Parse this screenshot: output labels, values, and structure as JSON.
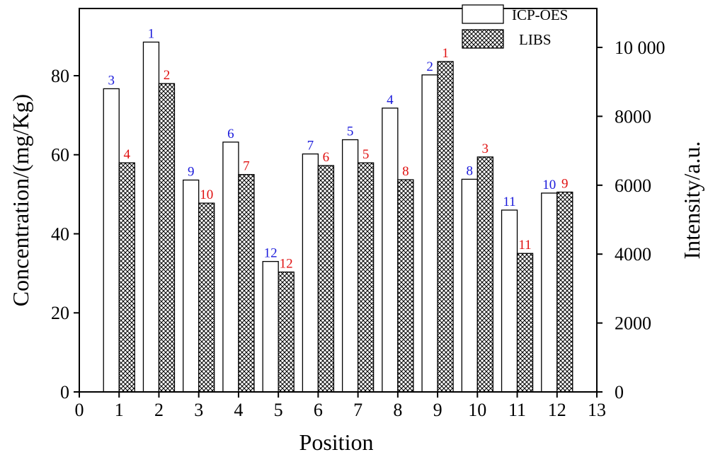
{
  "chart_data": {
    "type": "bar",
    "title": "",
    "xlabel": "Position",
    "ylabel_left": "Concentration/(mg/Kg)",
    "ylabel_right": "Intensity/a.u.",
    "x_ticks": [
      "0",
      "1",
      "2",
      "3",
      "4",
      "5",
      "6",
      "7",
      "8",
      "9",
      "10",
      "11",
      "12",
      "13"
    ],
    "y_left_ticks": [
      "0",
      "20",
      "40",
      "60",
      "80"
    ],
    "y_right_ticks": [
      "0",
      "2000",
      "4000",
      "6000",
      "8000",
      "10 000"
    ],
    "xlim": [
      0,
      13
    ],
    "ylim_left": [
      0,
      97
    ],
    "ylim_right": [
      0,
      11130
    ],
    "grid": false,
    "legend_position": "top-right",
    "categories": [
      1,
      2,
      3,
      4,
      5,
      6,
      7,
      8,
      9,
      10,
      11,
      12
    ],
    "series": [
      {
        "name": "ICP-OES",
        "axis": "left",
        "style": "open",
        "values": [
          76.7,
          88.5,
          53.6,
          63.2,
          33.0,
          60.2,
          63.8,
          71.8,
          80.2,
          53.8,
          46.0,
          50.3
        ],
        "rank_labels": [
          "3",
          "1",
          "9",
          "6",
          "12",
          "7",
          "5",
          "4",
          "2",
          "8",
          "11",
          "10"
        ],
        "label_color": "#1a1adb"
      },
      {
        "name": "LIBS",
        "axis": "right",
        "style": "crosshatch",
        "values": [
          6650,
          8950,
          5480,
          6310,
          3480,
          6570,
          6650,
          6160,
          9590,
          6820,
          4020,
          5800
        ],
        "rank_labels": [
          "4",
          "2",
          "10",
          "7",
          "12",
          "6",
          "5",
          "8",
          "1",
          "3",
          "11",
          "9"
        ],
        "label_color": "#e01010"
      }
    ]
  }
}
